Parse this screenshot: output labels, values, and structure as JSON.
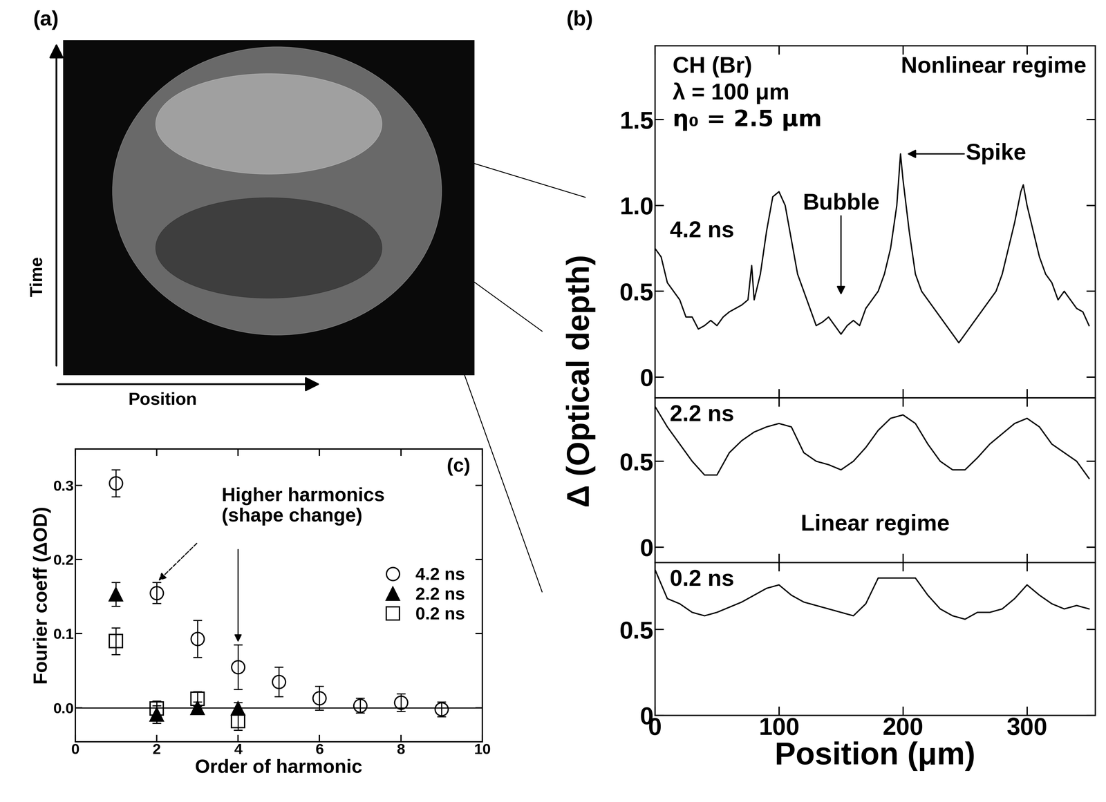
{
  "chart_data": [
    {
      "type": "image",
      "panel_label": "(a)",
      "xlabel": "Position",
      "ylabel": "Time",
      "tick_labels": false
    },
    {
      "type": "line",
      "panel_label": "(b)",
      "xlabel": "Position (μm)",
      "ylabel": "Δ (Optical depth)",
      "xlim": [
        0,
        355
      ],
      "xticks": [
        0,
        100,
        200,
        300
      ],
      "color": "#000000",
      "annotations": {
        "material": "CH (Br)",
        "wavelength": "λ = 100 μm",
        "amplitude": "η₀ = 2.5 μm",
        "upper_regime": "Nonlinear regime",
        "bubble": "Bubble",
        "spike": "Spike",
        "lower_regime": "Linear regime"
      },
      "series": [
        {
          "name": "4.2 ns",
          "x": [
            0,
            5,
            10,
            15,
            20,
            25,
            30,
            35,
            40,
            45,
            50,
            55,
            60,
            65,
            70,
            75,
            78,
            80,
            85,
            90,
            95,
            100,
            105,
            110,
            115,
            120,
            125,
            130,
            135,
            140,
            145,
            150,
            155,
            160,
            165,
            170,
            175,
            180,
            185,
            190,
            195,
            198,
            200,
            205,
            210,
            215,
            220,
            225,
            230,
            240,
            245,
            250,
            255,
            260,
            265,
            270,
            275,
            280,
            285,
            290,
            295,
            297,
            300,
            305,
            310,
            315,
            320,
            325,
            330,
            335,
            340,
            345,
            350
          ],
          "values": [
            0.75,
            0.7,
            0.55,
            0.5,
            0.45,
            0.35,
            0.35,
            0.28,
            0.3,
            0.33,
            0.3,
            0.35,
            0.38,
            0.4,
            0.42,
            0.45,
            0.65,
            0.45,
            0.6,
            0.85,
            1.05,
            1.08,
            1.0,
            0.8,
            0.6,
            0.5,
            0.4,
            0.3,
            0.32,
            0.35,
            0.3,
            0.25,
            0.3,
            0.33,
            0.3,
            0.4,
            0.45,
            0.5,
            0.6,
            0.75,
            1.0,
            1.3,
            1.15,
            0.85,
            0.6,
            0.5,
            0.45,
            0.4,
            0.35,
            0.25,
            0.2,
            0.25,
            0.3,
            0.35,
            0.4,
            0.45,
            0.5,
            0.6,
            0.75,
            0.9,
            1.08,
            1.12,
            1.0,
            0.85,
            0.7,
            0.6,
            0.55,
            0.45,
            0.5,
            0.45,
            0.4,
            0.38,
            0.3
          ],
          "ylim": [
            -0.12,
            1.93
          ],
          "yticks": [
            0,
            0.5,
            {
              "value": 1.0,
              "label": "1.0"
            },
            1.5
          ]
        },
        {
          "name": "2.2 ns",
          "x": [
            0,
            10,
            20,
            30,
            40,
            50,
            60,
            70,
            80,
            90,
            100,
            110,
            120,
            130,
            140,
            150,
            160,
            170,
            180,
            190,
            200,
            210,
            220,
            230,
            240,
            250,
            260,
            270,
            280,
            290,
            300,
            310,
            320,
            330,
            340,
            350
          ],
          "values": [
            0.82,
            0.7,
            0.6,
            0.5,
            0.42,
            0.42,
            0.55,
            0.62,
            0.67,
            0.7,
            0.72,
            0.7,
            0.55,
            0.5,
            0.48,
            0.45,
            0.5,
            0.58,
            0.68,
            0.75,
            0.77,
            0.72,
            0.6,
            0.5,
            0.45,
            0.45,
            0.52,
            0.6,
            0.66,
            0.72,
            0.75,
            0.7,
            0.6,
            0.55,
            0.5,
            0.4
          ],
          "ylim": [
            -0.09,
            0.87
          ],
          "yticks": [
            0,
            0.5
          ]
        },
        {
          "name": "0.2 ns",
          "x": [
            0,
            10,
            20,
            30,
            40,
            50,
            60,
            70,
            80,
            90,
            100,
            110,
            120,
            130,
            140,
            150,
            160,
            170,
            180,
            190,
            200,
            210,
            220,
            230,
            240,
            250,
            260,
            270,
            280,
            290,
            300,
            310,
            320,
            330,
            340,
            350
          ],
          "values": [
            0.85,
            0.68,
            0.65,
            0.6,
            0.58,
            0.6,
            0.63,
            0.66,
            0.7,
            0.74,
            0.76,
            0.7,
            0.66,
            0.64,
            0.62,
            0.6,
            0.58,
            0.65,
            0.8,
            0.8,
            0.8,
            0.8,
            0.7,
            0.62,
            0.58,
            0.56,
            0.6,
            0.6,
            0.62,
            0.68,
            0.76,
            0.7,
            0.65,
            0.62,
            0.64,
            0.62
          ],
          "ylim": [
            0,
            0.89
          ],
          "yticks": [
            0,
            0.5
          ]
        }
      ]
    },
    {
      "type": "scatter",
      "panel_label": "(c)",
      "xlabel": "Order of harmonic",
      "ylabel": "Fourier coeff (ΔOD)",
      "xlim": [
        0,
        10
      ],
      "xticks": [
        0,
        2,
        4,
        6,
        8,
        10
      ],
      "ylim": [
        -0.046,
        0.349
      ],
      "yticks": [
        {
          "value": 0.0,
          "label": "0.0"
        },
        0.1,
        0.2,
        0.3
      ],
      "legend": "center right",
      "color": "#000000",
      "annotation": "Higher harmonics\n(shape change)",
      "series": [
        {
          "name": "4.2 ns",
          "marker": "open_circle",
          "x": [
            1,
            2,
            3,
            4,
            5,
            6,
            7,
            8,
            9
          ],
          "values": [
            0.303,
            0.155,
            0.093,
            0.055,
            0.035,
            0.013,
            0.003,
            0.007,
            -0.002
          ],
          "errors": [
            0.018,
            0.014,
            0.025,
            0.03,
            0.02,
            0.016,
            0.01,
            0.012,
            0.01
          ]
        },
        {
          "name": "2.2 ns",
          "marker": "filled_triangle",
          "x": [
            1,
            2,
            3,
            4
          ],
          "values": [
            0.153,
            -0.009,
            0.0,
            -0.001
          ],
          "errors": [
            0.016,
            0.012,
            0.008,
            0.008
          ]
        },
        {
          "name": "0.2 ns",
          "marker": "open_square",
          "x": [
            1,
            2,
            3,
            4
          ],
          "values": [
            0.09,
            -0.001,
            0.012,
            -0.018
          ],
          "errors": [
            0.018,
            0.01,
            0.01,
            0.012
          ]
        }
      ]
    }
  ]
}
